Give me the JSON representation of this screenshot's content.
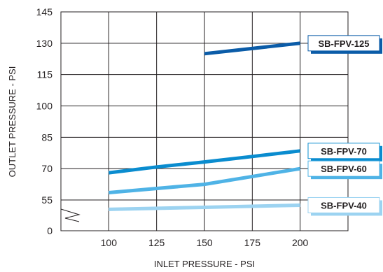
{
  "chart_data": {
    "type": "line",
    "xlabel": "INLET PRESSURE - PSI",
    "ylabel": "OUTLET PRESSURE - PSI",
    "x_ticks": [
      100,
      125,
      150,
      175,
      200
    ],
    "y_ticks": [
      "145",
      "130",
      "115",
      "100",
      "85",
      "70",
      "55",
      "0"
    ],
    "xlim": [
      75,
      225
    ],
    "ylim": [
      0,
      145
    ],
    "y_axis_break": "between 0 and 55",
    "grid": true,
    "series": [
      {
        "name": "SB-FPV-125",
        "color": "#0b5ca8",
        "x": [
          150,
          200
        ],
        "y": [
          125,
          130
        ]
      },
      {
        "name": "SB-FPV-70",
        "color": "#0a8ccf",
        "x": [
          100,
          125,
          150,
          175,
          200
        ],
        "y": [
          68,
          70.8,
          73.2,
          75.8,
          78.5
        ]
      },
      {
        "name": "SB-FPV-60",
        "color": "#4fb3e6",
        "x": [
          100,
          150,
          200
        ],
        "y": [
          58.5,
          62.5,
          70
        ]
      },
      {
        "name": "SB-FPV-40",
        "color": "#9cd3f1",
        "x": [
          100,
          150,
          200
        ],
        "y": [
          50.5,
          51.5,
          52.5
        ]
      }
    ]
  }
}
